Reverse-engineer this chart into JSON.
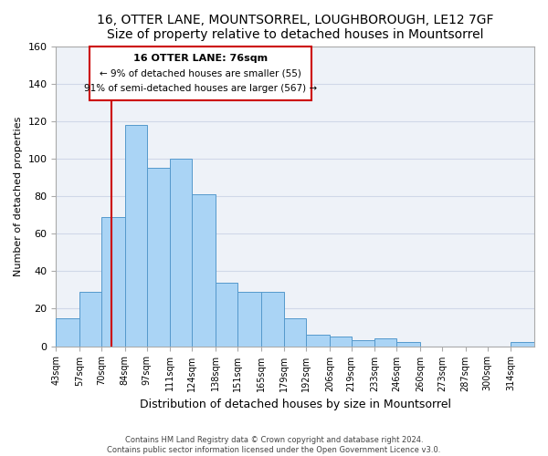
{
  "title": "16, OTTER LANE, MOUNTSORREL, LOUGHBOROUGH, LE12 7GF",
  "subtitle": "Size of property relative to detached houses in Mountsorrel",
  "xlabel": "Distribution of detached houses by size in Mountsorrel",
  "ylabel": "Number of detached properties",
  "bin_labels": [
    "43sqm",
    "57sqm",
    "70sqm",
    "84sqm",
    "97sqm",
    "111sqm",
    "124sqm",
    "138sqm",
    "151sqm",
    "165sqm",
    "179sqm",
    "192sqm",
    "206sqm",
    "219sqm",
    "233sqm",
    "246sqm",
    "260sqm",
    "273sqm",
    "287sqm",
    "300sqm",
    "314sqm"
  ],
  "bar_heights": [
    15,
    29,
    69,
    118,
    95,
    100,
    81,
    34,
    29,
    29,
    15,
    6,
    5,
    3,
    4,
    2,
    0,
    0,
    0,
    0,
    2
  ],
  "bar_color": "#aad4f5",
  "bar_edge_color": "#5599cc",
  "property_line_x": 76,
  "bin_edges": [
    43,
    57,
    70,
    84,
    97,
    111,
    124,
    138,
    151,
    165,
    179,
    192,
    206,
    219,
    233,
    246,
    260,
    273,
    287,
    300,
    314
  ],
  "bin_last_edge": 328,
  "ylim": [
    0,
    160
  ],
  "yticks": [
    0,
    20,
    40,
    60,
    80,
    100,
    120,
    140,
    160
  ],
  "annotation_title": "16 OTTER LANE: 76sqm",
  "annotation_line1": "← 9% of detached houses are smaller (55)",
  "annotation_line2": "91% of semi-detached houses are larger (567) →",
  "annotation_box_color": "#ffffff",
  "annotation_box_edge_color": "#cc0000",
  "red_line_color": "#cc0000",
  "footer_line1": "Contains HM Land Registry data © Crown copyright and database right 2024.",
  "footer_line2": "Contains public sector information licensed under the Open Government Licence v3.0.",
  "bg_color": "#ffffff",
  "grid_color": "#d0d8e8",
  "plot_bg_color": "#eef2f8"
}
